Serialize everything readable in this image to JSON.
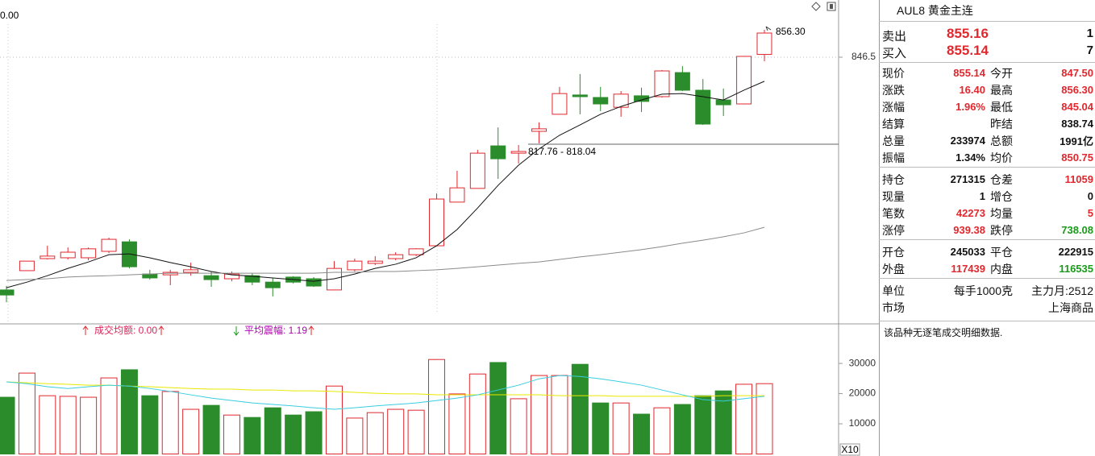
{
  "chart_data": [
    {
      "type": "candlestick",
      "corner_label": "0.00",
      "price_label": "856.30",
      "range_label": "817.76 - 818.04",
      "up_color": "#e0282e",
      "down_color": "#2a8c2a",
      "open": [
        763.3,
        770.2,
        774.5,
        774.8,
        774.8,
        777.1,
        780.5,
        769.0,
        768.7,
        769.6,
        768.4,
        767.3,
        768.4,
        766.1,
        767.9,
        767.3,
        763.3,
        770.5,
        772.8,
        774.5,
        775.9,
        779.1,
        794.7,
        799.6,
        814.8,
        812.2,
        820.0,
        826.1,
        833.0,
        832.1,
        828.6,
        832.7,
        832.4,
        841.0,
        834.7,
        831.2,
        829.8,
        847.5
      ],
      "high": [
        764.7,
        773.6,
        779.1,
        778.5,
        778.5,
        782.0,
        781.4,
        770.5,
        770.5,
        773.1,
        769.9,
        769.9,
        769.3,
        767.6,
        768.2,
        767.9,
        773.6,
        774.5,
        775.4,
        776.8,
        778.2,
        797.8,
        805.9,
        813.4,
        821.4,
        815.1,
        823.2,
        835.9,
        840.5,
        835.9,
        834.4,
        835.6,
        841.9,
        843.3,
        838.7,
        835.3,
        846.8,
        856.3
      ],
      "low": [
        758.9,
        770.2,
        774.2,
        774.2,
        773.9,
        776.5,
        771.0,
        767.0,
        765.0,
        768.4,
        764.4,
        766.4,
        765.0,
        761.0,
        765.6,
        764.4,
        763.3,
        769.9,
        772.2,
        773.9,
        775.4,
        779.1,
        794.7,
        799.6,
        803.0,
        808.5,
        815.7,
        826.1,
        826.1,
        827.2,
        825.2,
        826.9,
        832.1,
        834.4,
        822.3,
        825.5,
        829.8,
        845.04
      ],
      "close": [
        761.5,
        773.6,
        775.4,
        776.8,
        778.0,
        781.4,
        771.6,
        767.6,
        769.6,
        770.5,
        767.0,
        769.0,
        766.1,
        764.1,
        766.1,
        764.7,
        771.0,
        773.6,
        773.6,
        775.9,
        778.0,
        795.8,
        799.8,
        812.2,
        810.2,
        812.8,
        820.9,
        833.5,
        832.4,
        829.8,
        833.3,
        830.7,
        841.6,
        834.7,
        822.6,
        829.5,
        846.8,
        855.14
      ],
      "series": [
        {
          "color": "#111111",
          "values": [
            764.1,
            766.1,
            768.4,
            771.0,
            773.3,
            775.9,
            776.2,
            774.8,
            773.1,
            771.6,
            769.9,
            768.7,
            768.2,
            767.6,
            767.0,
            766.4,
            767.3,
            769.0,
            771.0,
            772.5,
            774.8,
            779.1,
            784.9,
            792.6,
            800.7,
            807.9,
            813.7,
            818.6,
            822.3,
            826.1,
            828.9,
            831.2,
            833.3,
            833.5,
            832.4,
            831.2,
            834.7,
            837.9
          ]
        },
        {
          "color": "#8a8a8a",
          "values": [
            766.7,
            767.0,
            767.3,
            767.9,
            768.2,
            768.4,
            768.7,
            769.0,
            769.3,
            769.3,
            769.3,
            769.3,
            769.3,
            769.3,
            769.3,
            769.3,
            769.6,
            769.6,
            769.9,
            769.9,
            770.2,
            770.5,
            771.0,
            771.6,
            772.2,
            772.8,
            773.3,
            774.2,
            775.1,
            775.9,
            776.8,
            777.7,
            778.8,
            780.0,
            781.1,
            782.3,
            783.7,
            785.7
          ]
        }
      ],
      "ylim": [
        751.75,
        866.95
      ],
      "yticks": [
        846.5
      ],
      "grid": true
    },
    {
      "type": "bar",
      "indicators": [
        "成交均额: 0.00",
        "平均震幅: 1.19"
      ],
      "unit_label": "X10",
      "values": [
        18800,
        26800,
        19300,
        19100,
        18800,
        25200,
        27900,
        19300,
        20700,
        14800,
        16100,
        12900,
        12100,
        15300,
        12900,
        14000,
        22500,
        11900,
        13700,
        14800,
        14500,
        31300,
        19900,
        26500,
        30300,
        18300,
        26000,
        26000,
        29700,
        16900,
        16900,
        13200,
        15300,
        16400,
        19300,
        20900,
        23100,
        23300
      ],
      "series": [
        {
          "color": "#e8e800",
          "values": [
            23900,
            23600,
            23300,
            23100,
            22800,
            22800,
            22500,
            22300,
            22000,
            21700,
            21500,
            21500,
            21200,
            21200,
            20900,
            20900,
            20700,
            20400,
            20100,
            19900,
            19900,
            19600,
            19600,
            19600,
            19600,
            19600,
            19600,
            19300,
            19300,
            19300,
            19100,
            19100,
            19100,
            19100,
            19100,
            19300,
            19300,
            19300
          ]
        },
        {
          "color": "#38cde0",
          "values": [
            23900,
            23300,
            22300,
            21700,
            22300,
            22800,
            22500,
            21700,
            20700,
            19600,
            18500,
            17700,
            16900,
            16400,
            15900,
            15300,
            14800,
            15300,
            15900,
            16400,
            16900,
            17700,
            18500,
            19600,
            21200,
            22800,
            24900,
            26000,
            25700,
            24900,
            23900,
            22800,
            21200,
            19600,
            18000,
            17500,
            18300,
            19100
          ]
        }
      ],
      "ylim": [
        0,
        42300
      ],
      "yticks": [
        10000,
        20000,
        30000
      ]
    }
  ],
  "quote_panel": {
    "title": "AUL8  黄金主连",
    "bid_ask": [
      [
        "卖出",
        "855.16",
        "1"
      ],
      [
        "买入",
        "855.14",
        "7"
      ]
    ],
    "stats": [
      [
        [
          "现价",
          "855.14",
          "今开",
          "847.50"
        ],
        [
          "涨跌",
          "16.40",
          "最高",
          "856.30"
        ],
        [
          "涨幅",
          "1.96%",
          "最低",
          "845.04"
        ],
        [
          "结算",
          null,
          "昨结",
          "838.74"
        ],
        [
          "总量",
          "233974",
          "总额",
          "1991亿"
        ],
        [
          "振幅",
          "1.34%",
          "均价",
          "850.75"
        ]
      ],
      [
        [
          "持仓",
          "271315",
          "仓差",
          "11059"
        ],
        [
          "现量",
          "1",
          "增仓",
          "0"
        ],
        [
          "笔数",
          "42273",
          "均量",
          "5"
        ],
        [
          "涨停",
          "939.38",
          "跌停",
          "738.08"
        ]
      ],
      [
        [
          "开仓",
          "245033",
          "平仓",
          "222915"
        ],
        [
          "外盘",
          "117439",
          "内盘",
          "116535"
        ]
      ]
    ],
    "unit_row": [
      "单位",
      "每手1000克",
      "主力月:2512"
    ],
    "market_row": [
      "市场",
      "上海商品"
    ],
    "note": "该品种无逐笔成交明细数据."
  }
}
